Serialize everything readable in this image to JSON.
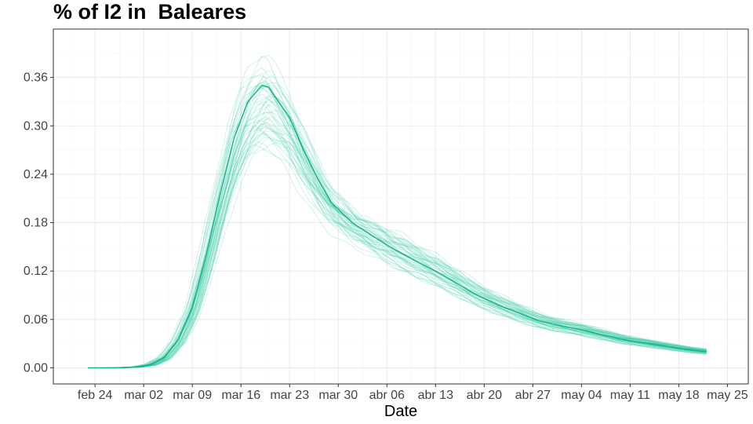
{
  "chart_data": {
    "type": "line",
    "title": "% of I2 in  Baleares",
    "xlabel": "Date",
    "ylabel": "",
    "x_ticks": [
      "feb 24",
      "mar 02",
      "mar 09",
      "mar 16",
      "mar 23",
      "mar 30",
      "abr 06",
      "abr 13",
      "abr 20",
      "abr 27",
      "may 04",
      "may 11",
      "may 18",
      "may 25"
    ],
    "x_tick_dates": [
      "2020-02-24",
      "2020-03-02",
      "2020-03-09",
      "2020-03-16",
      "2020-03-23",
      "2020-03-30",
      "2020-04-06",
      "2020-04-13",
      "2020-04-20",
      "2020-04-27",
      "2020-05-04",
      "2020-05-11",
      "2020-05-18",
      "2020-05-25"
    ],
    "xlim": [
      "2020-02-18",
      "2020-05-28"
    ],
    "y_ticks": [
      "0.00",
      "0.06",
      "0.12",
      "0.18",
      "0.24",
      "0.30",
      "0.36"
    ],
    "ylim": [
      -0.02,
      0.42
    ],
    "grid": true,
    "colors": {
      "line": "#13B08C",
      "ensemble": "#2CC9A0"
    },
    "main_series": {
      "x": [
        "2020-02-23",
        "2020-02-27",
        "2020-03-01",
        "2020-03-03",
        "2020-03-05",
        "2020-03-07",
        "2020-03-09",
        "2020-03-11",
        "2020-03-13",
        "2020-03-15",
        "2020-03-17",
        "2020-03-19",
        "2020-03-20",
        "2020-03-21",
        "2020-03-23",
        "2020-03-25",
        "2020-03-27",
        "2020-03-29",
        "2020-04-01",
        "2020-04-04",
        "2020-04-07",
        "2020-04-10",
        "2020-04-13",
        "2020-04-16",
        "2020-04-19",
        "2020-04-22",
        "2020-04-25",
        "2020-04-28",
        "2020-05-01",
        "2020-05-04",
        "2020-05-07",
        "2020-05-10",
        "2020-05-13",
        "2020-05-16",
        "2020-05-19",
        "2020-05-22"
      ],
      "y": [
        0.0,
        0.0,
        0.001,
        0.004,
        0.013,
        0.035,
        0.075,
        0.14,
        0.215,
        0.285,
        0.33,
        0.35,
        0.348,
        0.335,
        0.31,
        0.27,
        0.235,
        0.205,
        0.18,
        0.163,
        0.147,
        0.133,
        0.12,
        0.105,
        0.09,
        0.078,
        0.068,
        0.058,
        0.052,
        0.047,
        0.041,
        0.035,
        0.031,
        0.027,
        0.023,
        0.02
      ]
    },
    "ensemble": {
      "count": 50,
      "peak_min": 0.265,
      "peak_max": 0.395
    }
  }
}
